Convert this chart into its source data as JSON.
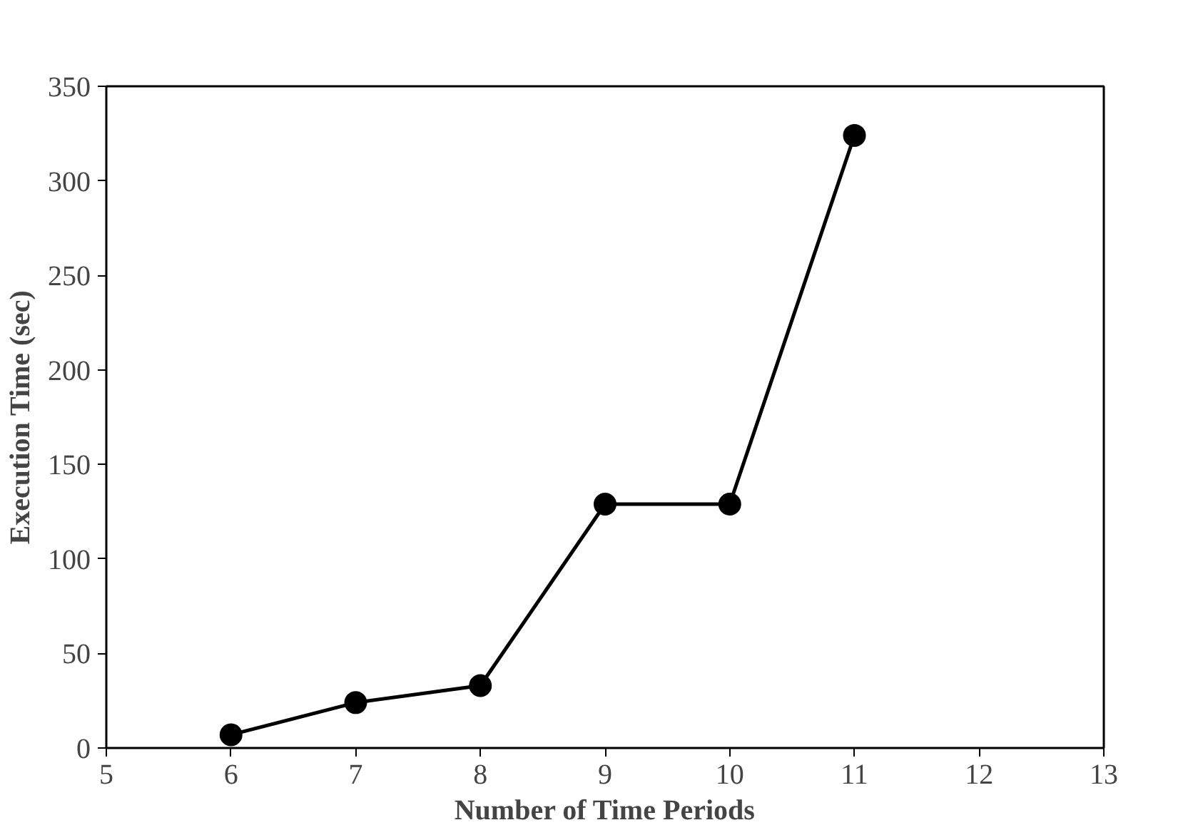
{
  "chart_data": {
    "type": "line",
    "xlabel": "Number of Time Periods",
    "ylabel": "Execution Time (sec)",
    "x": [
      6,
      7,
      8,
      9,
      10,
      11
    ],
    "series": [
      {
        "color": "#000000",
        "values": [
          7,
          24,
          33,
          129,
          129,
          324
        ]
      }
    ],
    "xlim": [
      5,
      13
    ],
    "xticks": [
      5,
      6,
      7,
      8,
      9,
      10,
      11,
      12,
      13
    ],
    "ylim": [
      0,
      350
    ],
    "yticks": [
      0,
      50,
      100,
      150,
      200,
      250,
      300,
      350
    ],
    "grid": false,
    "marker": "circle",
    "line_style": "solid"
  }
}
